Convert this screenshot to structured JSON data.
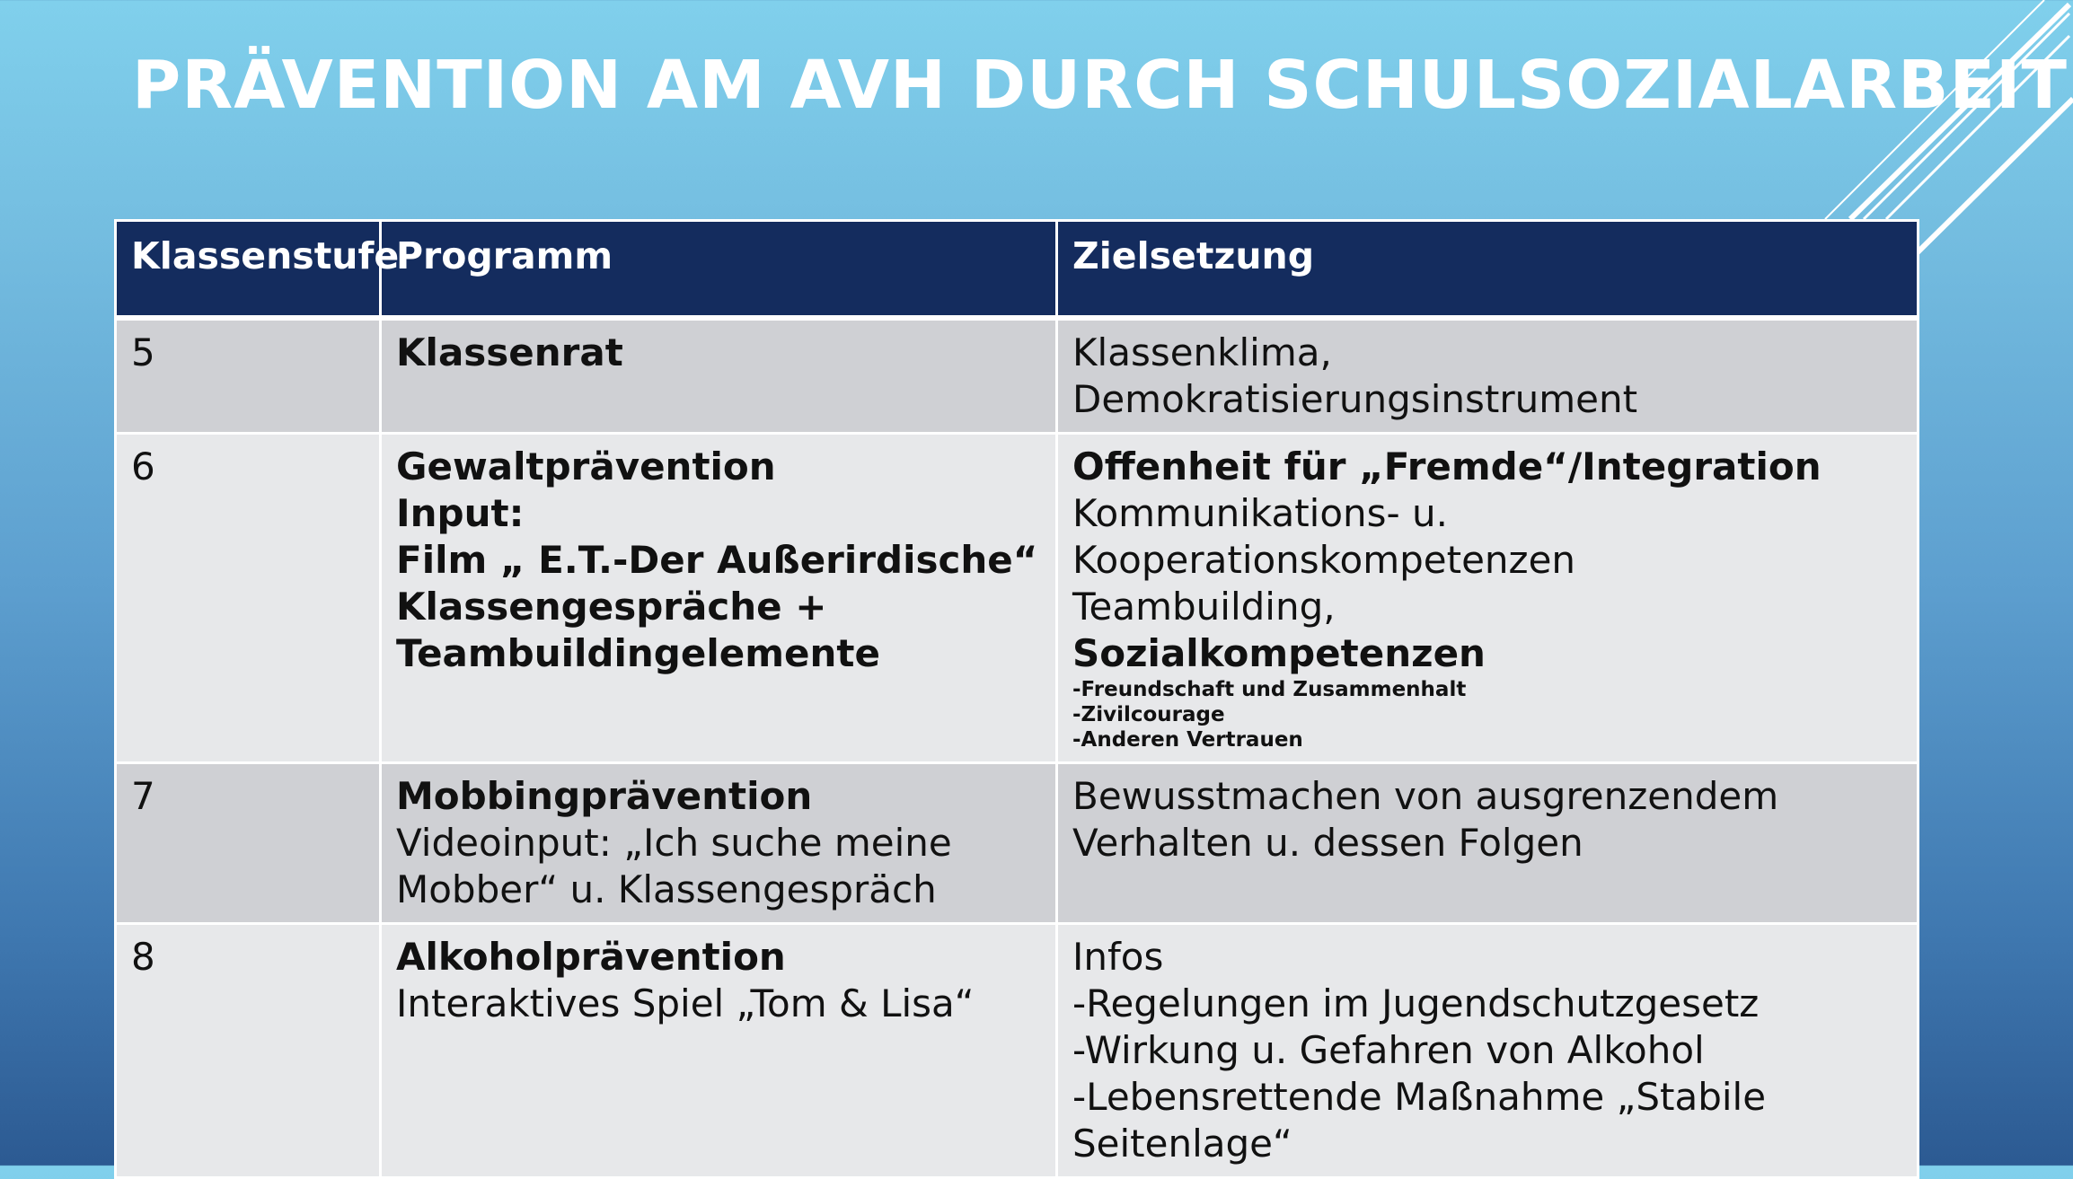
{
  "title": "PRÄVENTION AM AVH DURCH SCHULSOZIALARBEIT",
  "colors": {
    "header_bg": "#142c5e",
    "row_dark": "#cfd0d4",
    "row_light": "#e7e8ea",
    "bg_top": "#80d0ec",
    "bg_bottom": "#2c5a92"
  },
  "table": {
    "headers": [
      "Klassenstufe",
      "Programm",
      "Zielsetzung"
    ],
    "rows": [
      {
        "stufe": "5",
        "programm": [
          {
            "t": "Klassenrat",
            "bold": true
          }
        ],
        "ziel": [
          {
            "t": "Klassenklima,"
          },
          {
            "t": "Demokratisierungsinstrument"
          }
        ]
      },
      {
        "stufe": "6",
        "programm": [
          {
            "t": "Gewaltprävention",
            "bold": true
          },
          {
            "t": "Input:",
            "bold": true
          },
          {
            "t": "Film „ E.T.-Der Außerirdische“",
            "bold": true
          },
          {
            "t": "Klassengespräche +",
            "bold": true
          },
          {
            "t": "Teambuildingelemente",
            "bold": true
          }
        ],
        "ziel": [
          {
            "t": "Offenheit für „Fremde“/Integration",
            "bold": true
          },
          {
            "t": "Kommunikations- u."
          },
          {
            "t": "Kooperationskompetenzen"
          },
          {
            "t": "Teambuilding,"
          },
          {
            "t": "Sozialkompetenzen",
            "bold": true
          },
          {
            "t": "-Freundschaft und Zusammenhalt",
            "small": true
          },
          {
            "t": "-Zivilcourage",
            "small": true
          },
          {
            "t": "-Anderen Vertrauen",
            "small": true
          }
        ]
      },
      {
        "stufe": "7",
        "programm": [
          {
            "t": "Mobbingprävention",
            "bold": true
          },
          {
            "t": "Videoinput: „Ich suche meine"
          },
          {
            "t": "Mobber“ u. Klassengespräch"
          }
        ],
        "ziel": [
          {
            "t": "Bewusstmachen von ausgrenzendem"
          },
          {
            "t": "Verhalten u. dessen Folgen"
          }
        ]
      },
      {
        "stufe": "8",
        "programm": [
          {
            "t": "Alkoholprävention",
            "bold": true
          },
          {
            "t": "Interaktives Spiel „Tom & Lisa“"
          }
        ],
        "ziel": [
          {
            "t": "Infos"
          },
          {
            "t": "-Regelungen im Jugendschutzgesetz"
          },
          {
            "t": "-Wirkung u. Gefahren von Alkohol"
          },
          {
            "t": "-Lebensrettende Maßnahme „Stabile"
          },
          {
            "t": "Seitenlage“"
          }
        ]
      }
    ]
  }
}
